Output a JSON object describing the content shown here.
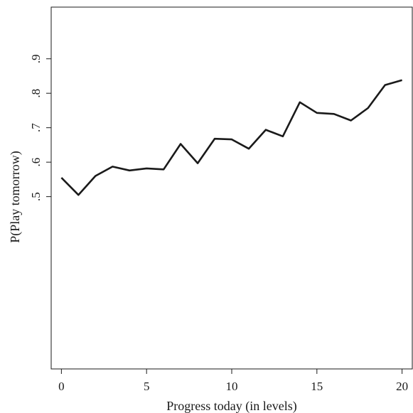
{
  "chart_data": {
    "type": "line",
    "title": "",
    "xlabel": "Progress today (in levels)",
    "ylabel": "P(Play tomorrow)",
    "xlim": [
      -0.6,
      20.6
    ],
    "ylim": [
      0.0,
      1.05
    ],
    "grid": false,
    "legend": "none",
    "x_ticks": [
      0,
      5,
      10,
      15,
      20
    ],
    "x_tick_labels": [
      "0",
      "5",
      "10",
      "15",
      "20"
    ],
    "y_ticks": [
      0.5,
      0.6,
      0.7,
      0.8,
      0.9
    ],
    "y_tick_labels": [
      ".5",
      ".6",
      ".7",
      ".8",
      ".9"
    ],
    "line_color": "#1a1a1a",
    "series": [
      {
        "x": [
          0,
          1,
          2,
          3,
          4,
          5,
          6,
          7,
          8,
          9,
          10,
          11,
          12,
          13,
          14,
          15,
          16,
          17,
          18,
          19,
          20
        ],
        "values": [
          0.555,
          0.505,
          0.56,
          0.587,
          0.576,
          0.582,
          0.579,
          0.653,
          0.597,
          0.668,
          0.666,
          0.639,
          0.694,
          0.675,
          0.774,
          0.743,
          0.74,
          0.721,
          0.757,
          0.824,
          0.838
        ]
      }
    ]
  }
}
